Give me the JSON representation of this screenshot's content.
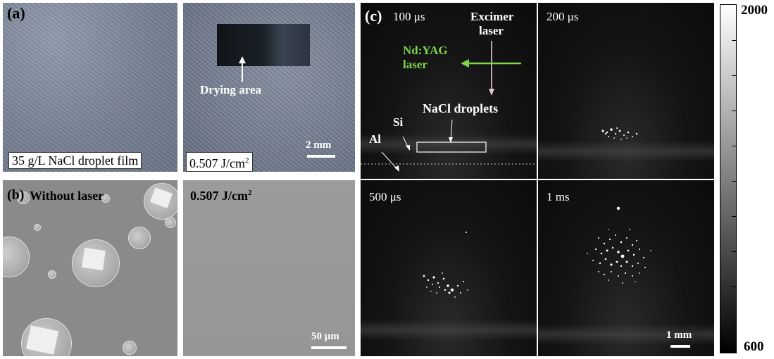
{
  "panel_a": {
    "label": "(a)",
    "left_caption": "35 g/L NaCl droplet film",
    "right_caption_main": "0.507 J/cm",
    "right_caption_sup": "2",
    "drying_area": "Drying area",
    "scale_bar": "2 mm"
  },
  "panel_b": {
    "label": "(b)",
    "left_title": "Without laser",
    "right_title_main": "0.507 J/cm",
    "right_title_sup": "2",
    "scale_bar": "50 μm"
  },
  "panel_c": {
    "label": "(c)",
    "frames": [
      "100 μs",
      "200 μs",
      "500 μs",
      "1 ms"
    ],
    "excimer_line1": "Excimer",
    "excimer_line2": "laser",
    "ndyag_line1": "Nd:YAG",
    "ndyag_line2": "laser",
    "nacl_droplets": "NaCl droplets",
    "si": "Si",
    "al": "Al",
    "scale_bar": "1 mm"
  },
  "colorbar": {
    "max": "2000",
    "min": "600"
  },
  "colors": {
    "ndyag_green": "#7fd54a"
  }
}
